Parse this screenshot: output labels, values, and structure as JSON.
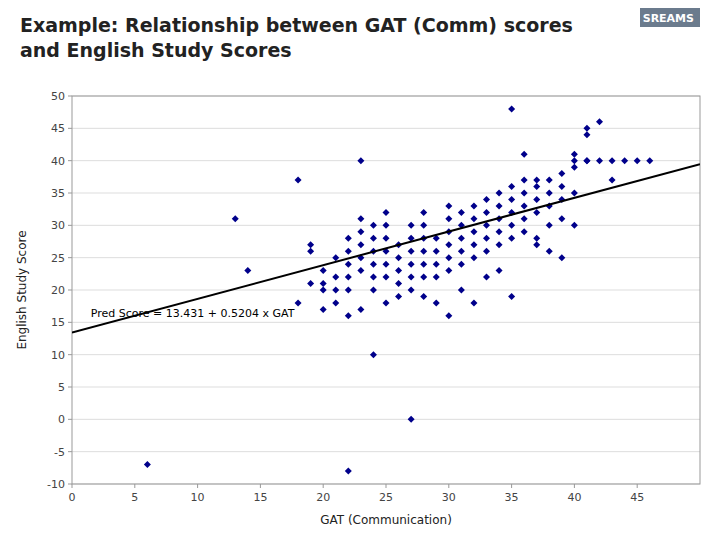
{
  "chart_data": {
    "type": "scatter",
    "title": "Example: Relationship between GAT (Comm) scores\nand English Study Scores",
    "xlabel": "GAT (Communication)",
    "ylabel": "English Study Score",
    "annotations": [
      "Pred Score = 13.431 + 0.5204 x GAT",
      "SREAMS"
    ],
    "xlim": [
      0,
      50
    ],
    "ylim": [
      -10,
      50
    ],
    "xticks": [
      0,
      5,
      10,
      15,
      20,
      25,
      30,
      35,
      40,
      45
    ],
    "yticks": [
      -10,
      -5,
      0,
      5,
      10,
      15,
      20,
      25,
      30,
      35,
      40,
      45,
      50
    ],
    "grid": "y",
    "series": [
      {
        "type": "scatter",
        "color": "#00008B",
        "marker": "diamond",
        "x": [
          6,
          13,
          14,
          18,
          18,
          19,
          19,
          19,
          20,
          20,
          20,
          20,
          21,
          21,
          21,
          21,
          22,
          22,
          22,
          22,
          22,
          22,
          22,
          23,
          23,
          23,
          23,
          23,
          23,
          23,
          24,
          24,
          24,
          24,
          24,
          24,
          24,
          25,
          25,
          25,
          25,
          25,
          25,
          25,
          26,
          26,
          26,
          26,
          26,
          27,
          27,
          27,
          27,
          27,
          27,
          27,
          28,
          28,
          28,
          28,
          28,
          28,
          28,
          29,
          29,
          29,
          29,
          29,
          30,
          30,
          30,
          30,
          30,
          30,
          30,
          31,
          31,
          31,
          31,
          31,
          31,
          32,
          32,
          32,
          32,
          32,
          32,
          33,
          33,
          33,
          33,
          33,
          33,
          34,
          34,
          34,
          34,
          34,
          34,
          35,
          35,
          35,
          35,
          35,
          35,
          35,
          36,
          36,
          36,
          36,
          36,
          36,
          37,
          37,
          37,
          37,
          37,
          37,
          38,
          38,
          38,
          38,
          38,
          39,
          39,
          39,
          39,
          39,
          40,
          40,
          40,
          40,
          40,
          41,
          41,
          41,
          41,
          42,
          42,
          43,
          43,
          44,
          45,
          46
        ],
        "values": [
          -7,
          31,
          23,
          18,
          37,
          21,
          26,
          27,
          17,
          20,
          21,
          23,
          18,
          20,
          22,
          25,
          16,
          20,
          22,
          24,
          26,
          28,
          -8,
          23,
          25,
          27,
          29,
          31,
          40,
          17,
          20,
          22,
          24,
          26,
          28,
          30,
          10,
          22,
          24,
          26,
          28,
          30,
          32,
          18,
          21,
          23,
          25,
          27,
          19,
          20,
          22,
          24,
          26,
          28,
          30,
          0,
          22,
          24,
          26,
          28,
          30,
          32,
          19,
          22,
          24,
          26,
          28,
          18,
          23,
          25,
          27,
          29,
          31,
          33,
          16,
          24,
          26,
          28,
          30,
          32,
          20,
          25,
          27,
          29,
          31,
          33,
          18,
          26,
          28,
          30,
          32,
          34,
          22,
          27,
          29,
          31,
          33,
          35,
          23,
          28,
          30,
          32,
          34,
          36,
          19,
          48,
          29,
          31,
          33,
          35,
          37,
          41,
          28,
          32,
          34,
          36,
          37,
          27,
          30,
          33,
          35,
          37,
          26,
          31,
          34,
          36,
          38,
          25,
          40,
          41,
          30,
          35,
          39,
          45,
          40,
          44,
          40,
          40,
          46,
          37,
          40,
          40,
          40,
          40
        ]
      },
      {
        "type": "line",
        "color": "#000000",
        "line_style": "solid",
        "x": [
          0,
          50
        ],
        "values": [
          13.431,
          39.451
        ]
      }
    ]
  }
}
